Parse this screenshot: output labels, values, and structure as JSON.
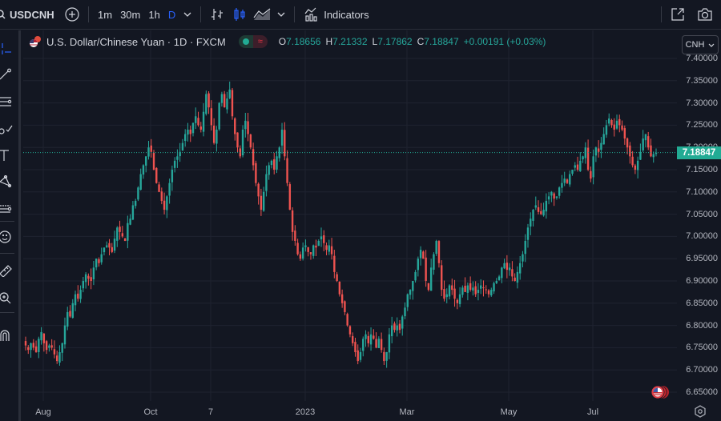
{
  "toolbar": {
    "symbol": "USDCNH",
    "intervals": [
      {
        "label": "1m",
        "active": false
      },
      {
        "label": "30m",
        "active": false
      },
      {
        "label": "1h",
        "active": false
      },
      {
        "label": "D",
        "active": true
      }
    ],
    "indicators_label": "Indicators",
    "icons": [
      "search-icon",
      "add-symbol-icon",
      "chevron-down-icon",
      "bar-chart-icon",
      "candles-icon",
      "area-chart-icon",
      "chevron-down-icon",
      "indicators-icon",
      "popout-icon",
      "camera-icon"
    ]
  },
  "legend": {
    "title": "U.S. Dollar/Chinese Yuan · 1D · FXCM",
    "open_label": "O",
    "open": "7.18656",
    "high_label": "H",
    "high": "7.21332",
    "low_label": "L",
    "low": "7.17862",
    "close_label": "C",
    "close": "7.18847",
    "change": "+0.00191 (+0.03%)",
    "pill_right_glyph": "≈"
  },
  "currency_button": {
    "label": "CNH"
  },
  "last_price": {
    "label": "7.18847",
    "value": 7.18847,
    "color": "#22ab94"
  },
  "colors": {
    "up": "#26a69a",
    "down": "#ef5350",
    "background": "#131722",
    "grid": "#1f2330",
    "accent": "#2962ff"
  },
  "chart_data": {
    "type": "candlestick",
    "title": "U.S. Dollar/Chinese Yuan · 1D · FXCM",
    "xlabel": "",
    "ylabel": "",
    "ylim": [
      6.63,
      7.41
    ],
    "yticks": [
      "7.40000",
      "7.35000",
      "7.30000",
      "7.25000",
      "7.20000",
      "7.15000",
      "7.10000",
      "7.05000",
      "7.00000",
      "6.95000",
      "6.90000",
      "6.85000",
      "6.80000",
      "6.75000",
      "6.70000",
      "6.65000"
    ],
    "xticks": [
      {
        "label": "Aug",
        "x": 54
      },
      {
        "label": "Oct",
        "x": 188
      },
      {
        "label": "7",
        "x": 263
      },
      {
        "label": "2023",
        "x": 381
      },
      {
        "label": "Mar",
        "x": 508
      },
      {
        "label": "May",
        "x": 635
      },
      {
        "label": "Jul",
        "x": 740
      }
    ],
    "grid": true,
    "last_value": 7.18847,
    "period": "Jul 2022 – Jul 2023 (daily)",
    "closes": [
      6.755,
      6.745,
      6.76,
      6.75,
      6.74,
      6.77,
      6.785,
      6.76,
      6.745,
      6.755,
      6.75,
      6.735,
      6.72,
      6.74,
      6.76,
      6.8,
      6.83,
      6.82,
      6.85,
      6.87,
      6.86,
      6.88,
      6.9,
      6.915,
      6.905,
      6.9,
      6.93,
      6.95,
      6.94,
      6.96,
      6.975,
      6.98,
      6.975,
      6.965,
      6.995,
      7.02,
      7.01,
      7.0,
      6.99,
      7.03,
      7.04,
      7.07,
      7.08,
      7.11,
      7.14,
      7.16,
      7.18,
      7.2,
      7.19,
      7.15,
      7.12,
      7.1,
      7.08,
      7.06,
      7.09,
      7.12,
      7.15,
      7.17,
      7.18,
      7.19,
      7.21,
      7.23,
      7.24,
      7.23,
      7.255,
      7.27,
      7.25,
      7.24,
      7.28,
      7.32,
      7.29,
      7.25,
      7.21,
      7.24,
      7.3,
      7.32,
      7.29,
      7.31,
      7.33,
      7.27,
      7.23,
      7.2,
      7.18,
      7.24,
      7.26,
      7.23,
      7.2,
      7.16,
      7.12,
      7.09,
      7.06,
      7.1,
      7.14,
      7.16,
      7.17,
      7.15,
      7.18,
      7.2,
      7.24,
      7.18,
      7.12,
      7.06,
      7.01,
      6.99,
      6.96,
      6.95,
      6.975,
      6.98,
      6.965,
      6.96,
      6.98,
      6.975,
      6.99,
      7.0,
      6.985,
      6.97,
      6.98,
      6.96,
      6.92,
      6.9,
      6.87,
      6.85,
      6.83,
      6.8,
      6.78,
      6.76,
      6.74,
      6.72,
      6.74,
      6.77,
      6.78,
      6.76,
      6.78,
      6.77,
      6.75,
      6.77,
      6.745,
      6.72,
      6.74,
      6.78,
      6.8,
      6.79,
      6.8,
      6.79,
      6.82,
      6.84,
      6.87,
      6.88,
      6.9,
      6.92,
      6.95,
      6.97,
      6.95,
      6.9,
      6.88,
      6.93,
      6.96,
      6.99,
      6.94,
      6.88,
      6.86,
      6.87,
      6.89,
      6.88,
      6.86,
      6.85,
      6.87,
      6.885,
      6.875,
      6.89,
      6.88,
      6.885,
      6.87,
      6.88,
      6.89,
      6.885,
      6.88,
      6.87,
      6.88,
      6.895,
      6.9,
      6.91,
      6.93,
      6.94,
      6.925,
      6.93,
      6.91,
      6.9,
      6.92,
      6.94,
      6.96,
      6.99,
      7.02,
      7.04,
      7.06,
      7.07,
      7.055,
      7.05,
      7.06,
      7.08,
      7.09,
      7.1,
      7.085,
      7.09,
      7.11,
      7.12,
      7.13,
      7.12,
      7.14,
      7.15,
      7.16,
      7.15,
      7.17,
      7.18,
      7.2,
      7.15,
      7.13,
      7.18,
      7.2,
      7.19,
      7.21,
      7.23,
      7.25,
      7.265,
      7.25,
      7.24,
      7.26,
      7.25,
      7.24,
      7.22,
      7.2,
      7.18,
      7.16,
      7.15,
      7.17,
      7.19,
      7.22,
      7.23,
      7.2,
      7.18,
      7.185,
      7.188
    ]
  },
  "xaxis_labels": [
    "Aug",
    "Oct",
    "7",
    "2023",
    "Mar",
    "May",
    "Jul"
  ],
  "sidebar": {
    "tools": [
      "crosshair-icon",
      "trend-line-icon",
      "fib-retracement-icon",
      "brush-icon",
      "text-icon",
      "pattern-icon",
      "forecast-icon",
      "emoji-icon",
      "ruler-icon",
      "zoom-in-icon",
      "magnet-icon"
    ]
  }
}
